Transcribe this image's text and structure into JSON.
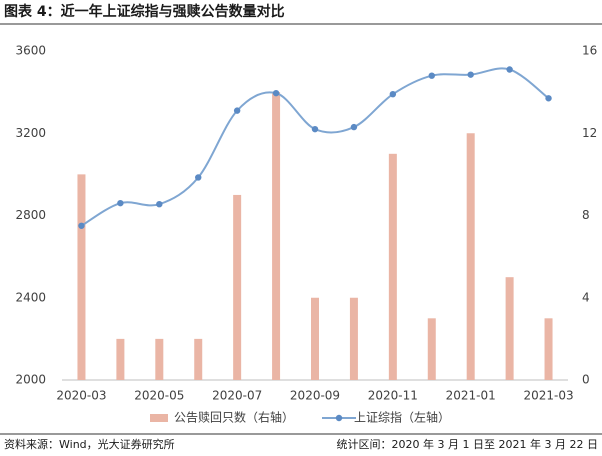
{
  "chart_data": {
    "type": "combo",
    "title": "图表 4：近一年上证综指与强赎公告数量对比",
    "source": "资料来源：Wind，光大证券研究所",
    "period_note": "统计区间：2020 年 3 月 1 日至 2021 年 3 月 22 日",
    "categories": [
      "2020-03",
      null,
      "2020-05",
      null,
      "2020-07",
      null,
      "2020-09",
      null,
      "2020-11",
      null,
      "2021-01",
      null,
      "2021-03"
    ],
    "series": [
      {
        "name": "公告赎回只数（右轴）",
        "type": "bar",
        "axis": "y2",
        "color": "#eab5a5",
        "values": [
          10,
          2,
          2,
          2,
          9,
          14,
          4,
          4,
          11,
          3,
          12,
          5,
          3
        ]
      },
      {
        "name": "上证综指（左轴）",
        "type": "line",
        "color": "#7fa6d2",
        "marker_color": "#5b8ac4",
        "values": [
          2750,
          2860,
          2855,
          2985,
          3310,
          3395,
          3220,
          3230,
          3390,
          3480,
          3485,
          3510,
          3370
        ]
      }
    ],
    "ylim": [
      2000,
      3600
    ],
    "yticks": [
      2000,
      2400,
      2800,
      3200,
      3600
    ],
    "y2lim": [
      0,
      16
    ],
    "y2ticks": [
      0,
      4,
      8,
      12,
      16
    ],
    "legend": "bottom",
    "grid": false
  }
}
